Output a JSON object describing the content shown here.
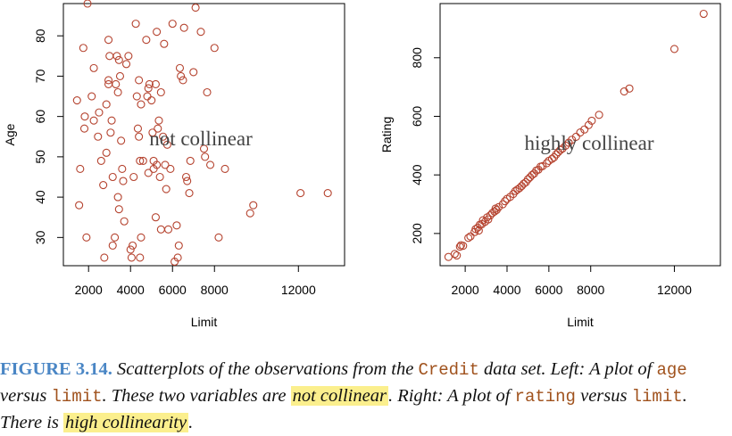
{
  "chart_data": [
    {
      "type": "scatter",
      "xlabel": "Limit",
      "ylabel": "Age",
      "xticks": [
        2000,
        4000,
        6000,
        8000,
        12000
      ],
      "yticks": [
        30,
        40,
        50,
        60,
        70,
        80
      ],
      "xlim": [
        800,
        14200
      ],
      "ylim": [
        23,
        88
      ],
      "annotation": "not collinear",
      "marker_color": "#b5432f",
      "points": [
        [
          1450,
          64
        ],
        [
          1550,
          38
        ],
        [
          1600,
          47
        ],
        [
          1750,
          77
        ],
        [
          1800,
          57
        ],
        [
          1820,
          60
        ],
        [
          1900,
          30
        ],
        [
          1950,
          88
        ],
        [
          2150,
          65
        ],
        [
          2250,
          72
        ],
        [
          2250,
          59
        ],
        [
          2450,
          55
        ],
        [
          2500,
          61
        ],
        [
          2600,
          49
        ],
        [
          2700,
          43
        ],
        [
          2750,
          25
        ],
        [
          2850,
          51
        ],
        [
          2850,
          63
        ],
        [
          2950,
          79
        ],
        [
          2950,
          68
        ],
        [
          2950,
          69
        ],
        [
          3000,
          75
        ],
        [
          3050,
          56
        ],
        [
          3100,
          59
        ],
        [
          3150,
          45
        ],
        [
          3150,
          28
        ],
        [
          3250,
          30
        ],
        [
          3300,
          68
        ],
        [
          3350,
          75
        ],
        [
          3400,
          66
        ],
        [
          3400,
          40
        ],
        [
          3450,
          37
        ],
        [
          3450,
          74
        ],
        [
          3500,
          70
        ],
        [
          3550,
          54
        ],
        [
          3600,
          47
        ],
        [
          3650,
          44
        ],
        [
          3700,
          34
        ],
        [
          3800,
          73
        ],
        [
          3900,
          75
        ],
        [
          4000,
          27
        ],
        [
          4050,
          25
        ],
        [
          4100,
          28
        ],
        [
          4150,
          45
        ],
        [
          4250,
          83
        ],
        [
          4300,
          65
        ],
        [
          4350,
          57
        ],
        [
          4400,
          55
        ],
        [
          4400,
          69
        ],
        [
          4450,
          49
        ],
        [
          4450,
          25
        ],
        [
          4500,
          30
        ],
        [
          4500,
          63
        ],
        [
          4600,
          49
        ],
        [
          4750,
          79
        ],
        [
          4800,
          65
        ],
        [
          4850,
          67
        ],
        [
          4850,
          46
        ],
        [
          4900,
          68
        ],
        [
          5000,
          64
        ],
        [
          5050,
          56
        ],
        [
          5100,
          47
        ],
        [
          5100,
          49
        ],
        [
          5200,
          68
        ],
        [
          5200,
          35
        ],
        [
          5250,
          81
        ],
        [
          5250,
          48
        ],
        [
          5300,
          57
        ],
        [
          5350,
          59
        ],
        [
          5400,
          45
        ],
        [
          5450,
          66
        ],
        [
          5450,
          32
        ],
        [
          5550,
          55
        ],
        [
          5600,
          78
        ],
        [
          5650,
          48
        ],
        [
          5700,
          42
        ],
        [
          5750,
          53
        ],
        [
          5800,
          32
        ],
        [
          5900,
          47
        ],
        [
          6000,
          83
        ],
        [
          6100,
          24
        ],
        [
          6200,
          33
        ],
        [
          6250,
          25
        ],
        [
          6300,
          28
        ],
        [
          6350,
          72
        ],
        [
          6400,
          70
        ],
        [
          6500,
          69
        ],
        [
          6550,
          82
        ],
        [
          6650,
          45
        ],
        [
          6700,
          44
        ],
        [
          6800,
          41
        ],
        [
          6850,
          49
        ],
        [
          7000,
          71
        ],
        [
          7100,
          87
        ],
        [
          7350,
          81
        ],
        [
          7500,
          52
        ],
        [
          7550,
          50
        ],
        [
          7650,
          66
        ],
        [
          7800,
          48
        ],
        [
          8000,
          77
        ],
        [
          8200,
          30
        ],
        [
          8500,
          47
        ],
        [
          9700,
          36
        ],
        [
          9850,
          38
        ],
        [
          12100,
          41
        ],
        [
          13400,
          41
        ]
      ]
    },
    {
      "type": "scatter",
      "xlabel": "Limit",
      "ylabel": "Rating",
      "xticks": [
        2000,
        4000,
        6000,
        8000,
        12000
      ],
      "yticks": [
        200,
        400,
        600,
        800
      ],
      "xlim": [
        800,
        14200
      ],
      "ylim": [
        90,
        985
      ],
      "annotation": "highly collinear",
      "marker_color": "#b5432f",
      "points": [
        [
          1200,
          120
        ],
        [
          1500,
          130
        ],
        [
          1600,
          125
        ],
        [
          1750,
          155
        ],
        [
          1800,
          160
        ],
        [
          1900,
          158
        ],
        [
          2150,
          185
        ],
        [
          2250,
          190
        ],
        [
          2450,
          205
        ],
        [
          2500,
          215
        ],
        [
          2600,
          220
        ],
        [
          2650,
          210
        ],
        [
          2700,
          230
        ],
        [
          2800,
          232
        ],
        [
          2850,
          245
        ],
        [
          2950,
          240
        ],
        [
          3050,
          255
        ],
        [
          3100,
          248
        ],
        [
          3200,
          262
        ],
        [
          3300,
          270
        ],
        [
          3400,
          275
        ],
        [
          3450,
          285
        ],
        [
          3500,
          280
        ],
        [
          3600,
          290
        ],
        [
          3800,
          300
        ],
        [
          3900,
          310
        ],
        [
          4000,
          318
        ],
        [
          4150,
          325
        ],
        [
          4300,
          335
        ],
        [
          4400,
          345
        ],
        [
          4500,
          350
        ],
        [
          4600,
          355
        ],
        [
          4700,
          362
        ],
        [
          4800,
          370
        ],
        [
          4900,
          375
        ],
        [
          5000,
          385
        ],
        [
          5100,
          392
        ],
        [
          5200,
          400
        ],
        [
          5300,
          405
        ],
        [
          5400,
          415
        ],
        [
          5500,
          418
        ],
        [
          5600,
          428
        ],
        [
          5700,
          430
        ],
        [
          5900,
          440
        ],
        [
          6000,
          448
        ],
        [
          6150,
          455
        ],
        [
          6250,
          460
        ],
        [
          6350,
          470
        ],
        [
          6450,
          478
        ],
        [
          6550,
          485
        ],
        [
          6650,
          490
        ],
        [
          6800,
          500
        ],
        [
          6950,
          510
        ],
        [
          7100,
          520
        ],
        [
          7300,
          530
        ],
        [
          7500,
          545
        ],
        [
          7700,
          555
        ],
        [
          7900,
          570
        ],
        [
          8050,
          585
        ],
        [
          8400,
          605
        ],
        [
          9600,
          685
        ],
        [
          9850,
          695
        ],
        [
          12000,
          830
        ],
        [
          13400,
          950
        ]
      ]
    }
  ],
  "caption": {
    "label": "FIGURE 3.14.",
    "t1": " Scatterplots of the observations from the ",
    "code1": "Credit",
    "t2": " data set. Left: A plot of ",
    "code2": "age",
    "t3": " versus ",
    "code3": "limit",
    "t4": ". These two variables are ",
    "hl1": "not collinear",
    "t5": ". Right: A plot of ",
    "code4": "rating",
    "t6": " versus ",
    "code5": "limit",
    "t7": ". There is ",
    "hl2": "high collinearity",
    "t8": "."
  }
}
